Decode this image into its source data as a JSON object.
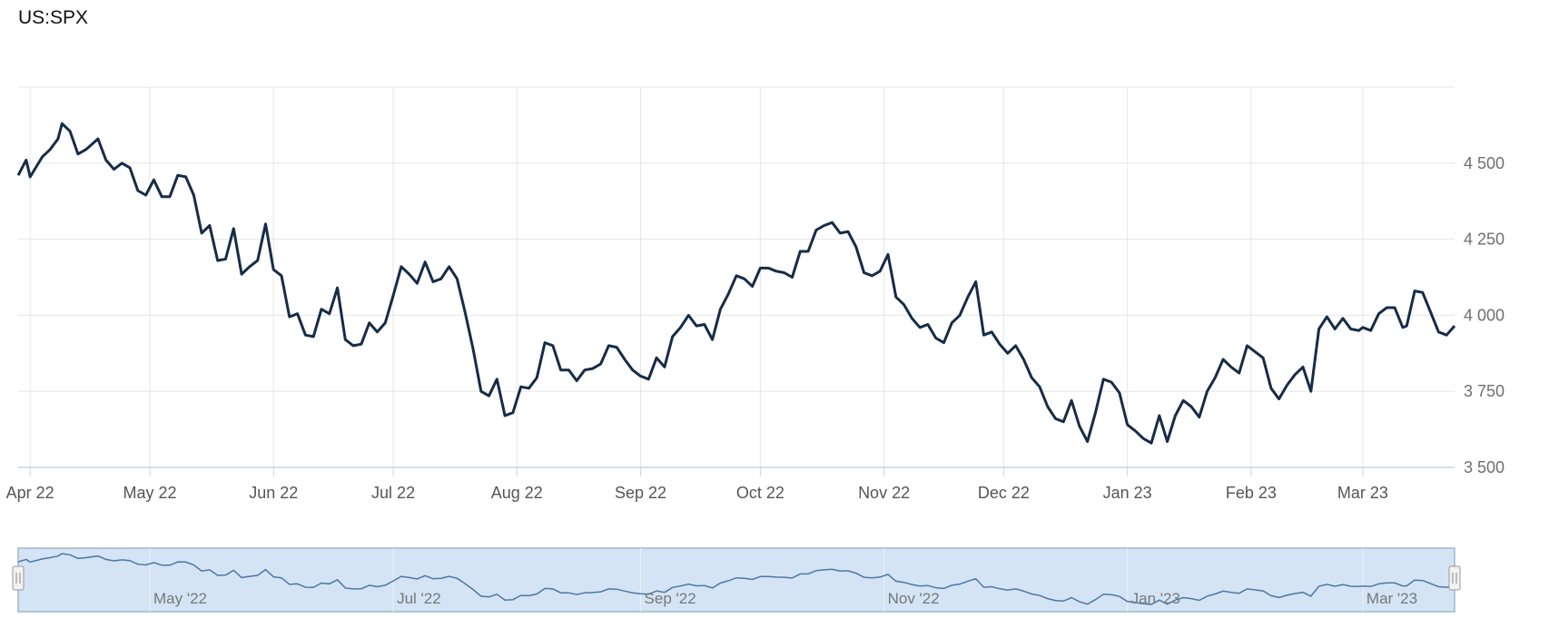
{
  "title": "US:SPX",
  "colors": {
    "line": "#162c47",
    "grid": "#e6e6e6",
    "axis": "#c9d4e0",
    "navigator_fill": "#d4e4f5",
    "navigator_border": "#9fb6cc",
    "navigator_line": "#4f77a3"
  },
  "chart_data": {
    "type": "line",
    "title": "US:SPX",
    "xlabel": "",
    "ylabel": "",
    "x_range": [
      "2022-03-29",
      "2023-03-24"
    ],
    "ylim": [
      3500,
      4750
    ],
    "y_ticks": [
      3500,
      3750,
      4000,
      4250,
      4500
    ],
    "y_tick_labels": [
      "3 500",
      "3 750",
      "4 000",
      "4 250",
      "4 500"
    ],
    "x_ticks": [
      "2022-04-01",
      "2022-05-01",
      "2022-06-01",
      "2022-07-01",
      "2022-08-01",
      "2022-09-01",
      "2022-10-01",
      "2022-11-01",
      "2022-12-01",
      "2023-01-01",
      "2023-02-01",
      "2023-03-01"
    ],
    "x_tick_labels": [
      "Apr 22",
      "May 22",
      "Jun 22",
      "Jul 22",
      "Aug 22",
      "Sep 22",
      "Oct 22",
      "Nov 22",
      "Dec 22",
      "Jan 23",
      "Feb 23",
      "Mar 23"
    ],
    "grid": true,
    "y_axis_position": "right",
    "series": [
      {
        "points": [
          [
            "2022-03-29",
            4460
          ],
          [
            "2022-03-31",
            4510
          ],
          [
            "2022-04-01",
            4455
          ],
          [
            "2022-04-04",
            4520
          ],
          [
            "2022-04-06",
            4545
          ],
          [
            "2022-04-08",
            4580
          ],
          [
            "2022-04-09",
            4630
          ],
          [
            "2022-04-11",
            4605
          ],
          [
            "2022-04-13",
            4530
          ],
          [
            "2022-04-15",
            4545
          ],
          [
            "2022-04-18",
            4580
          ],
          [
            "2022-04-20",
            4510
          ],
          [
            "2022-04-22",
            4480
          ],
          [
            "2022-04-24",
            4500
          ],
          [
            "2022-04-26",
            4485
          ],
          [
            "2022-04-28",
            4410
          ],
          [
            "2022-04-30",
            4395
          ],
          [
            "2022-05-02",
            4445
          ],
          [
            "2022-05-04",
            4390
          ],
          [
            "2022-05-06",
            4390
          ],
          [
            "2022-05-08",
            4460
          ],
          [
            "2022-05-10",
            4455
          ],
          [
            "2022-05-12",
            4395
          ],
          [
            "2022-05-14",
            4270
          ],
          [
            "2022-05-16",
            4295
          ],
          [
            "2022-05-18",
            4180
          ],
          [
            "2022-05-20",
            4185
          ],
          [
            "2022-05-22",
            4285
          ],
          [
            "2022-05-24",
            4135
          ],
          [
            "2022-05-26",
            4160
          ],
          [
            "2022-05-28",
            4180
          ],
          [
            "2022-05-30",
            4300
          ],
          [
            "2022-06-01",
            4150
          ],
          [
            "2022-06-03",
            4130
          ],
          [
            "2022-06-05",
            3995
          ],
          [
            "2022-06-07",
            4005
          ],
          [
            "2022-06-09",
            3935
          ],
          [
            "2022-06-11",
            3930
          ],
          [
            "2022-06-13",
            4020
          ],
          [
            "2022-06-15",
            4005
          ],
          [
            "2022-06-17",
            4090
          ],
          [
            "2022-06-19",
            3920
          ],
          [
            "2022-06-21",
            3900
          ],
          [
            "2022-06-23",
            3905
          ],
          [
            "2022-06-25",
            3975
          ],
          [
            "2022-06-27",
            3945
          ],
          [
            "2022-06-29",
            3975
          ],
          [
            "2022-07-01",
            4065
          ],
          [
            "2022-07-03",
            4160
          ],
          [
            "2022-07-05",
            4135
          ],
          [
            "2022-07-07",
            4105
          ],
          [
            "2022-07-09",
            4175
          ],
          [
            "2022-07-11",
            4110
          ],
          [
            "2022-07-13",
            4120
          ],
          [
            "2022-07-15",
            4160
          ],
          [
            "2022-07-17",
            4120
          ],
          [
            "2022-07-19",
            4010
          ],
          [
            "2022-07-21",
            3890
          ],
          [
            "2022-07-23",
            3750
          ],
          [
            "2022-07-25",
            3735
          ],
          [
            "2022-07-27",
            3790
          ],
          [
            "2022-07-29",
            3670
          ],
          [
            "2022-07-31",
            3680
          ],
          [
            "2022-08-02",
            3765
          ],
          [
            "2022-08-04",
            3760
          ],
          [
            "2022-08-06",
            3795
          ],
          [
            "2022-08-08",
            3910
          ],
          [
            "2022-08-10",
            3900
          ],
          [
            "2022-08-12",
            3820
          ],
          [
            "2022-08-14",
            3820
          ],
          [
            "2022-08-16",
            3785
          ],
          [
            "2022-08-18",
            3820
          ],
          [
            "2022-08-20",
            3825
          ],
          [
            "2022-08-22",
            3840
          ],
          [
            "2022-08-24",
            3900
          ],
          [
            "2022-08-26",
            3895
          ],
          [
            "2022-08-28",
            3855
          ],
          [
            "2022-08-30",
            3820
          ],
          [
            "2022-09-01",
            3800
          ],
          [
            "2022-09-03",
            3790
          ],
          [
            "2022-09-05",
            3860
          ],
          [
            "2022-09-07",
            3830
          ],
          [
            "2022-09-09",
            3930
          ],
          [
            "2022-09-11",
            3960
          ],
          [
            "2022-09-13",
            4000
          ],
          [
            "2022-09-15",
            3965
          ],
          [
            "2022-09-17",
            3970
          ],
          [
            "2022-09-19",
            3920
          ],
          [
            "2022-09-21",
            4020
          ],
          [
            "2022-09-23",
            4070
          ],
          [
            "2022-09-25",
            4130
          ],
          [
            "2022-09-27",
            4120
          ],
          [
            "2022-09-29",
            4095
          ],
          [
            "2022-10-01",
            4155
          ],
          [
            "2022-10-03",
            4155
          ],
          [
            "2022-10-05",
            4145
          ],
          [
            "2022-10-07",
            4140
          ],
          [
            "2022-10-09",
            4125
          ],
          [
            "2022-10-11",
            4210
          ],
          [
            "2022-10-13",
            4210
          ],
          [
            "2022-10-15",
            4280
          ],
          [
            "2022-10-17",
            4295
          ],
          [
            "2022-10-19",
            4305
          ],
          [
            "2022-10-21",
            4270
          ],
          [
            "2022-10-23",
            4275
          ],
          [
            "2022-10-25",
            4225
          ],
          [
            "2022-10-27",
            4140
          ],
          [
            "2022-10-29",
            4130
          ],
          [
            "2022-10-31",
            4145
          ],
          [
            "2022-11-02",
            4200
          ],
          [
            "2022-11-04",
            4060
          ],
          [
            "2022-11-06",
            4035
          ],
          [
            "2022-11-08",
            3990
          ],
          [
            "2022-11-10",
            3960
          ],
          [
            "2022-11-12",
            3970
          ],
          [
            "2022-11-14",
            3925
          ],
          [
            "2022-11-16",
            3910
          ],
          [
            "2022-11-18",
            3975
          ],
          [
            "2022-11-20",
            4000
          ],
          [
            "2022-11-22",
            4060
          ],
          [
            "2022-11-24",
            4110
          ],
          [
            "2022-11-26",
            3935
          ],
          [
            "2022-11-28",
            3945
          ],
          [
            "2022-11-30",
            3905
          ],
          [
            "2022-12-02",
            3875
          ],
          [
            "2022-12-04",
            3900
          ],
          [
            "2022-12-06",
            3855
          ],
          [
            "2022-12-08",
            3795
          ],
          [
            "2022-12-10",
            3765
          ],
          [
            "2022-12-12",
            3700
          ],
          [
            "2022-12-14",
            3660
          ],
          [
            "2022-12-16",
            3650
          ],
          [
            "2022-12-18",
            3720
          ],
          [
            "2022-12-20",
            3635
          ],
          [
            "2022-12-22",
            3585
          ],
          [
            "2022-12-24",
            3680
          ],
          [
            "2022-12-26",
            3790
          ],
          [
            "2022-12-28",
            3780
          ],
          [
            "2022-12-30",
            3745
          ],
          [
            "2023-01-01",
            3640
          ],
          [
            "2023-01-03",
            3620
          ],
          [
            "2023-01-05",
            3595
          ],
          [
            "2023-01-07",
            3580
          ],
          [
            "2023-01-09",
            3670
          ],
          [
            "2023-01-11",
            3585
          ],
          [
            "2023-01-13",
            3670
          ],
          [
            "2023-01-15",
            3720
          ],
          [
            "2023-01-17",
            3700
          ],
          [
            "2023-01-19",
            3665
          ],
          [
            "2023-01-21",
            3750
          ],
          [
            "2023-01-23",
            3795
          ],
          [
            "2023-01-25",
            3855
          ],
          [
            "2023-01-27",
            3830
          ],
          [
            "2023-01-29",
            3810
          ],
          [
            "2023-01-31",
            3900
          ],
          [
            "2023-02-02",
            3880
          ],
          [
            "2023-02-04",
            3860
          ],
          [
            "2023-02-06",
            3760
          ],
          [
            "2023-02-08",
            3725
          ],
          [
            "2023-02-10",
            3770
          ],
          [
            "2023-02-12",
            3805
          ],
          [
            "2023-02-14",
            3830
          ],
          [
            "2023-02-16",
            3750
          ],
          [
            "2023-02-18",
            3955
          ],
          [
            "2023-02-20",
            3995
          ],
          [
            "2023-02-22",
            3955
          ],
          [
            "2023-02-24",
            3990
          ],
          [
            "2023-02-26",
            3955
          ],
          [
            "2023-02-28",
            3950
          ],
          [
            "2023-03-01",
            3960
          ],
          [
            "2023-03-03",
            3950
          ],
          [
            "2023-03-05",
            4005
          ],
          [
            "2023-03-07",
            4025
          ],
          [
            "2023-03-09",
            4025
          ],
          [
            "2023-03-11",
            3960
          ],
          [
            "2023-03-12",
            3965
          ],
          [
            "2023-03-14",
            4080
          ],
          [
            "2023-03-16",
            4075
          ],
          [
            "2023-03-18",
            4010
          ],
          [
            "2023-03-20",
            3945
          ],
          [
            "2023-03-22",
            3935
          ],
          [
            "2023-03-24",
            3965
          ]
        ]
      }
    ]
  },
  "navigator": {
    "labels": [
      "May '22",
      "Jul '22",
      "Sep '22",
      "Nov '22",
      "Jan '23",
      "Mar '23"
    ],
    "label_dates": [
      "2022-05-01",
      "2022-07-01",
      "2022-09-01",
      "2022-11-01",
      "2023-01-01",
      "2023-03-01"
    ],
    "left_handle_icon": "grip-handle-icon",
    "right_handle_icon": "grip-handle-icon"
  }
}
